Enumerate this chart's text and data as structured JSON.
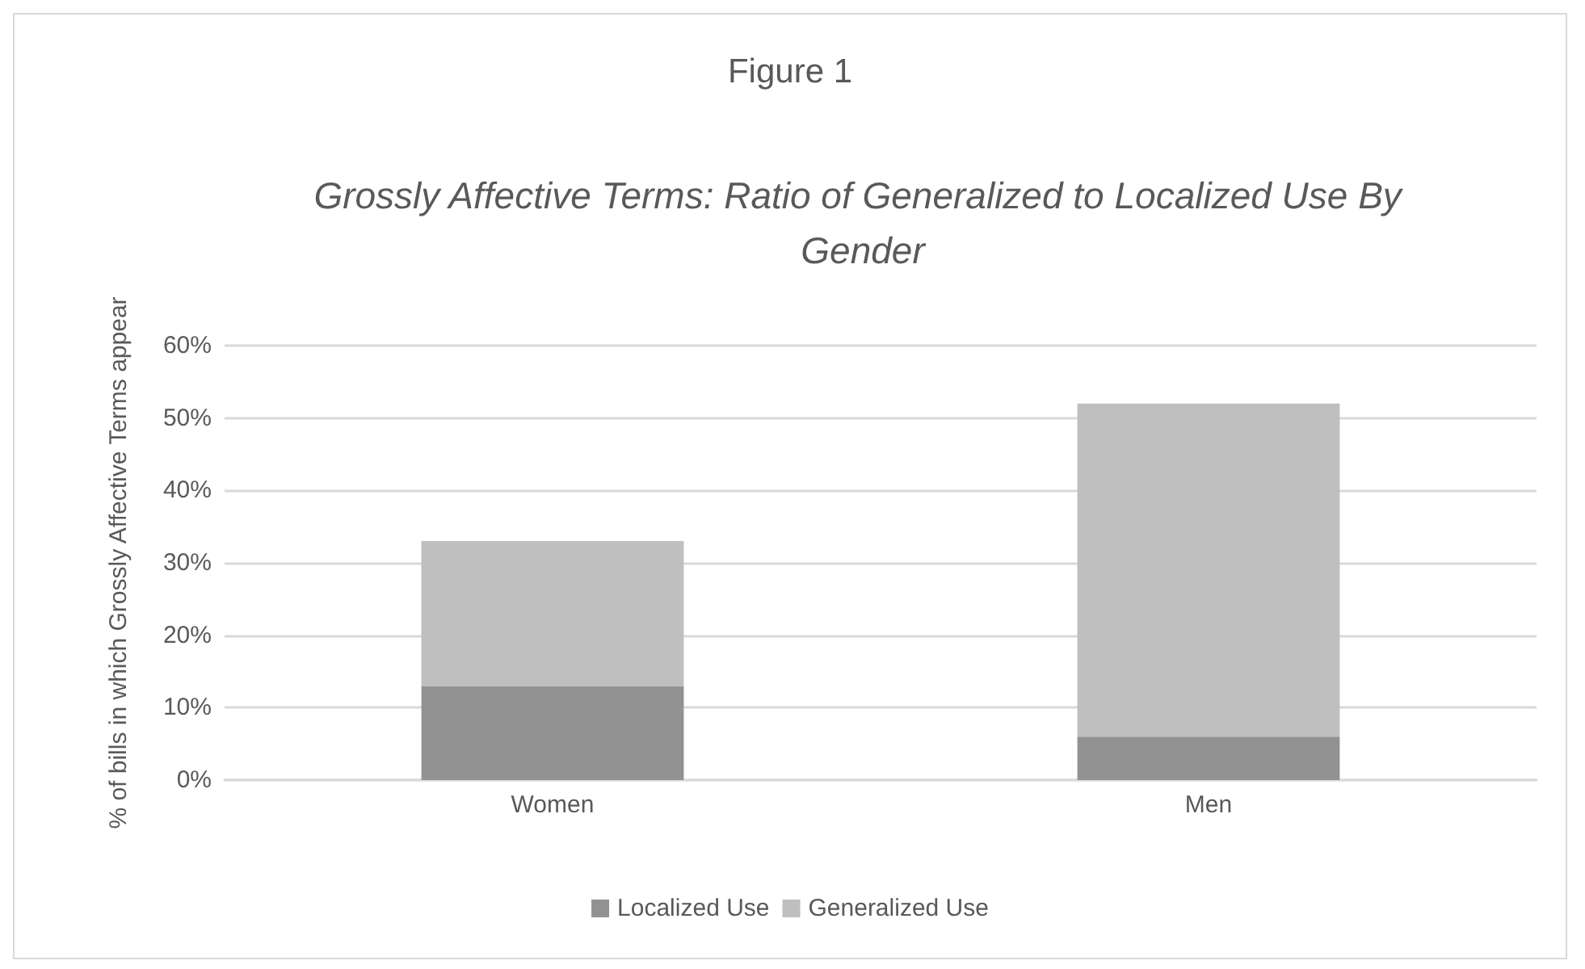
{
  "chart_data": {
    "type": "bar",
    "title": "Figure 1",
    "subtitle": "Grossly Affective Terms: Ratio of Generalized to Localized Use By Gender",
    "ylabel": "% of bills in which Grossly Affective Terms appear",
    "categories": [
      "Women",
      "Men"
    ],
    "stacked": true,
    "series": [
      {
        "name": "Localized Use",
        "color": "#929292",
        "values": [
          13,
          6
        ]
      },
      {
        "name": "Generalized Use",
        "color": "#bfbfbf",
        "values": [
          20,
          46
        ]
      }
    ],
    "ylim": [
      0,
      60
    ],
    "yticks": [
      {
        "value": 0,
        "label": "0%"
      },
      {
        "value": 10,
        "label": "10%"
      },
      {
        "value": 20,
        "label": "20%"
      },
      {
        "value": 30,
        "label": "30%"
      },
      {
        "value": 40,
        "label": "40%"
      },
      {
        "value": 50,
        "label": "50%"
      },
      {
        "value": 60,
        "label": "60%"
      }
    ],
    "grid": "y",
    "legend": "bottom"
  }
}
